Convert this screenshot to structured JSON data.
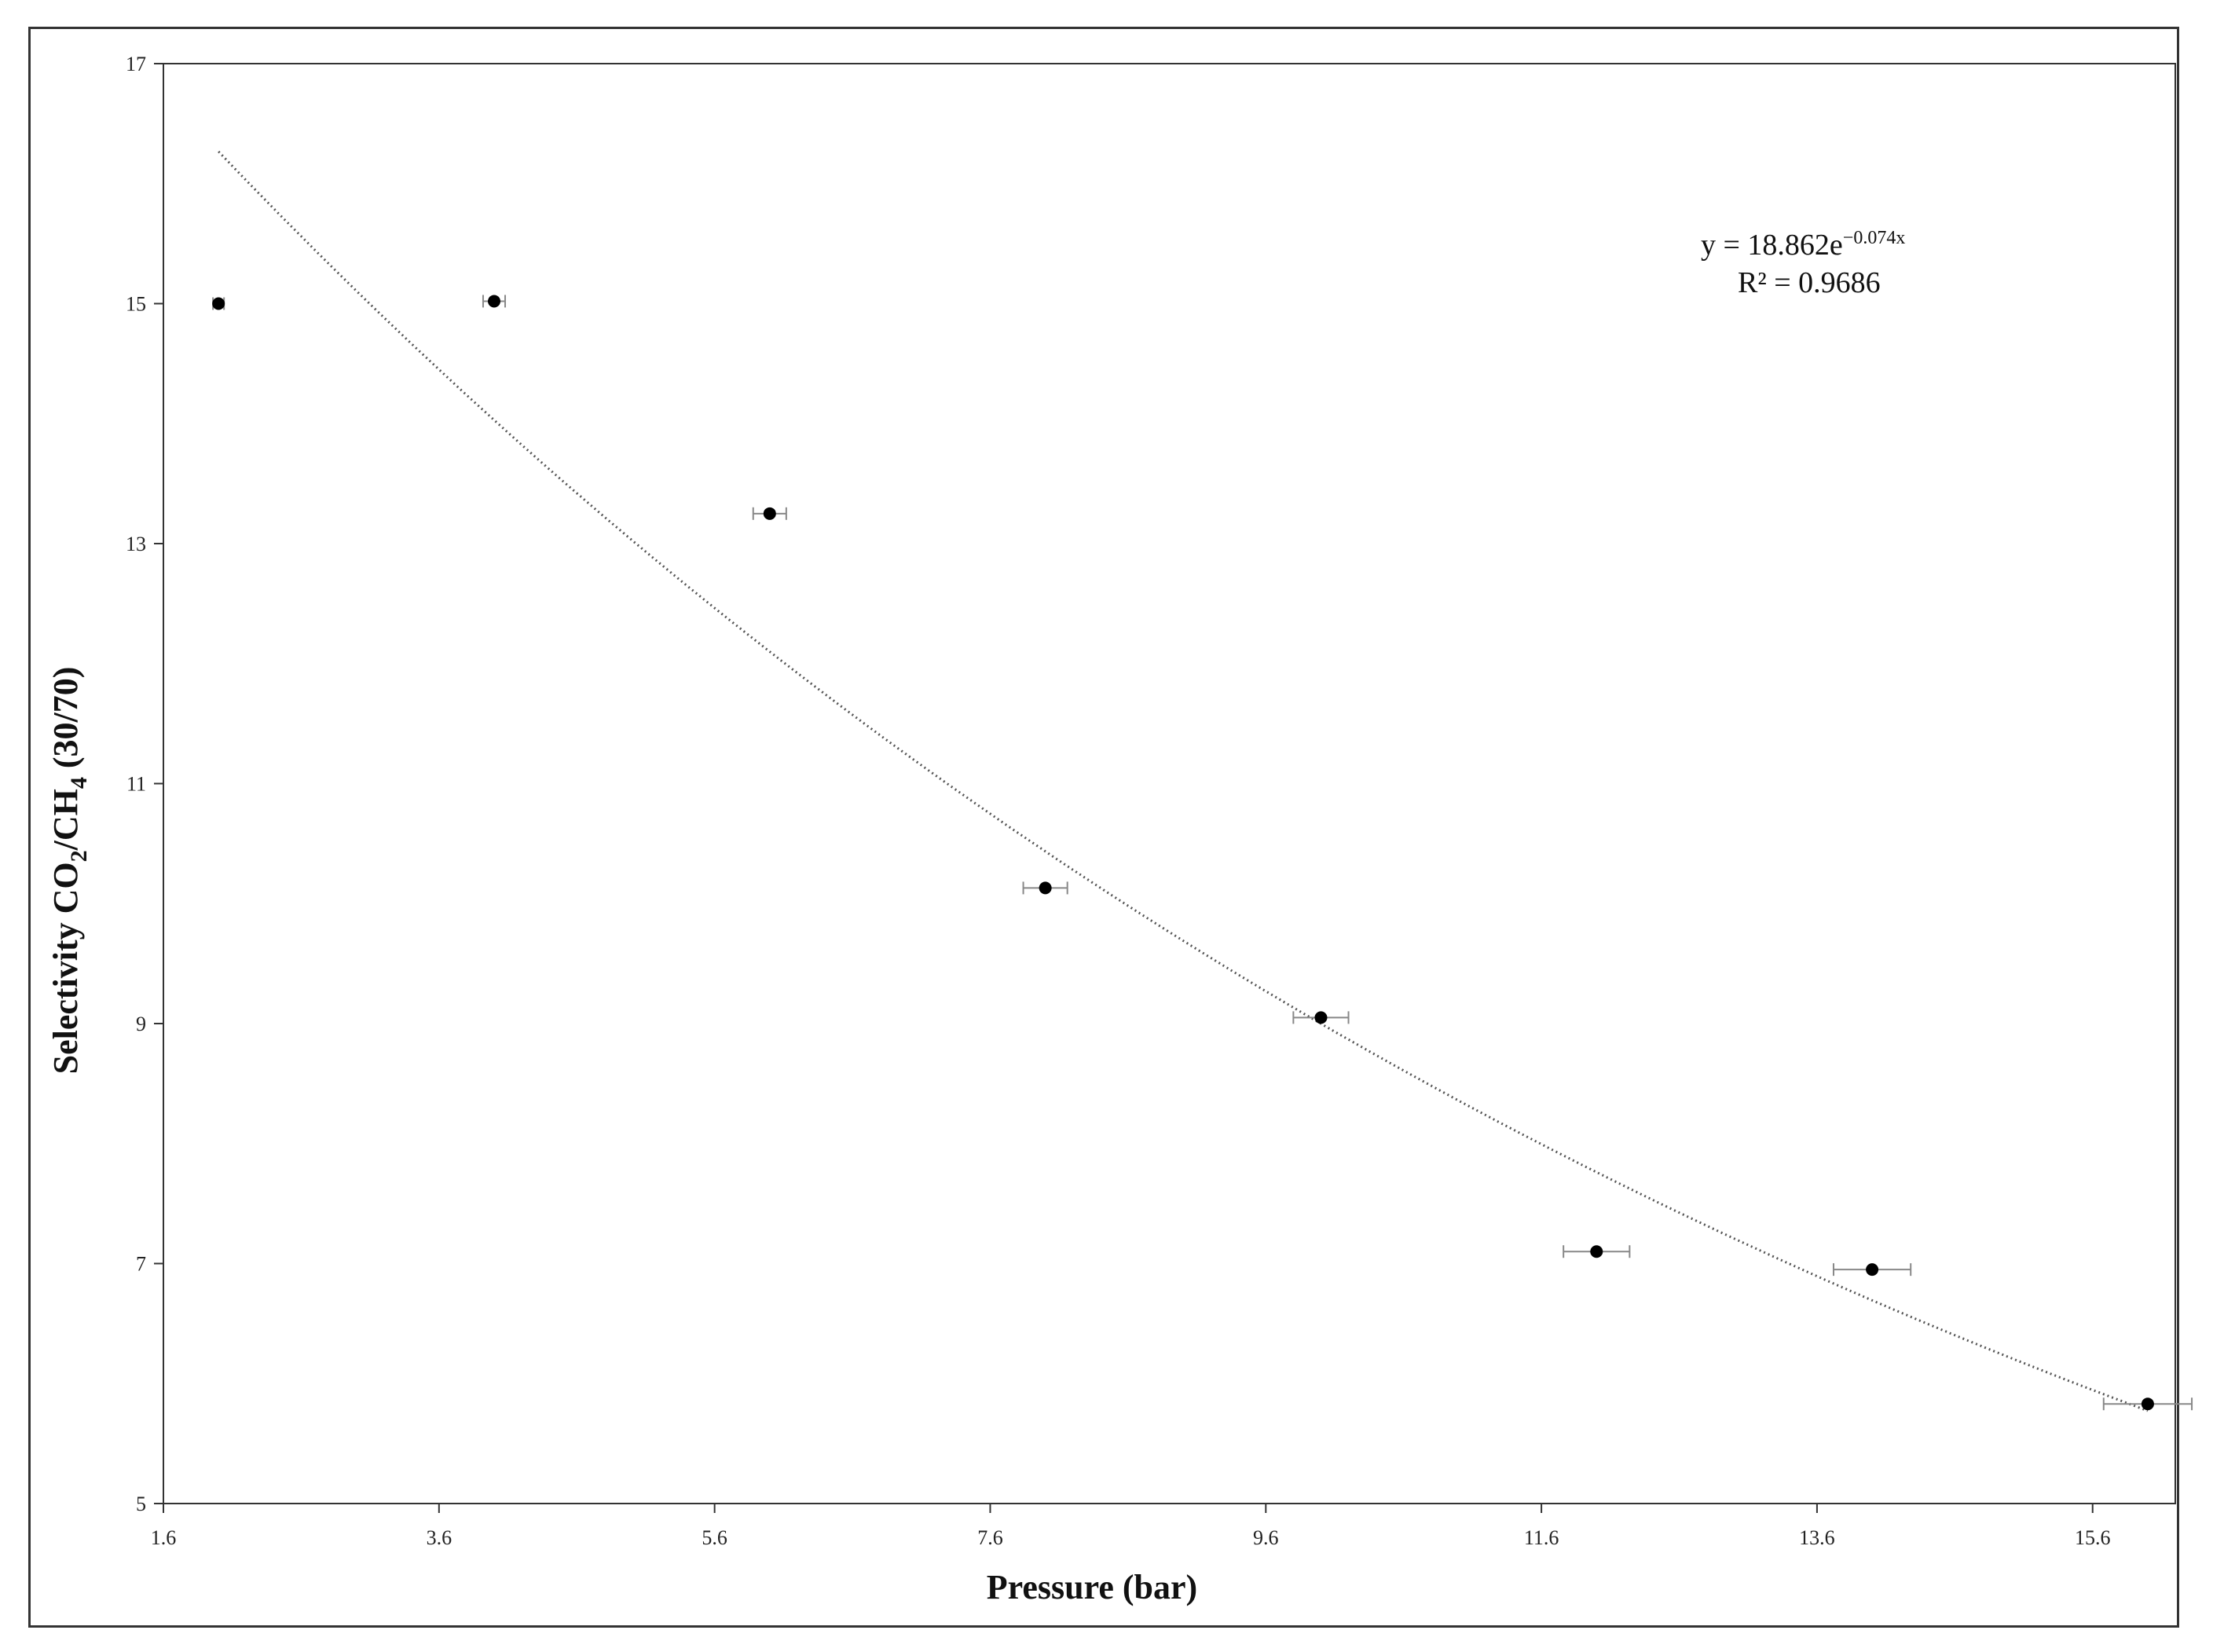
{
  "chart_data": {
    "type": "scatter",
    "xlabel": "Pressure (bar)",
    "ylabel": {
      "prefix": "Selectivity CO",
      "sub1": "2",
      "mid": "/CH",
      "sub2": "4",
      "suffix": " (30/70)"
    },
    "xlim": [
      1.6,
      16.2
    ],
    "ylim": [
      5,
      17
    ],
    "xticks": [
      "1.6",
      "3.6",
      "5.6",
      "7.6",
      "9.6",
      "11.6",
      "13.6",
      "15.6"
    ],
    "yticks": [
      "5",
      "7",
      "9",
      "11",
      "13",
      "15",
      "17"
    ],
    "series": [
      {
        "x": [
          2.0,
          4.0,
          6.0,
          8.0,
          10.0,
          12.0,
          14.0,
          16.0
        ],
        "y": [
          15.0,
          15.02,
          13.25,
          10.13,
          9.05,
          7.1,
          6.95,
          5.83
        ],
        "x_err": [
          0.04,
          0.08,
          0.12,
          0.16,
          0.2,
          0.24,
          0.28,
          0.32
        ],
        "color": "#000000"
      }
    ],
    "trendline": {
      "type": "exponential",
      "a": 18.862,
      "b": -0.074,
      "x_range": [
        2.0,
        16.0
      ],
      "style": "dotted",
      "equation": {
        "prefix": "y = 18.862e",
        "exponent": "−0.074x"
      },
      "r_squared": "R² = 0.9686"
    }
  }
}
